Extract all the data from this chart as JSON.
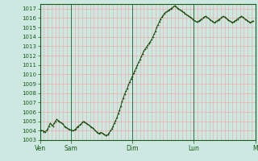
{
  "background_color": "#cce8e0",
  "plot_bg_color": "#cce8e0",
  "grid_color_v": "#f0a0a0",
  "grid_color_h": "#f0a0a0",
  "line_color": "#1a4a0a",
  "marker_color": "#1a4a0a",
  "axis_color": "#1a5a1a",
  "tick_label_color": "#1a5a1a",
  "ylim": [
    1003,
    1017.5
  ],
  "yticks": [
    1003,
    1004,
    1005,
    1006,
    1007,
    1008,
    1009,
    1010,
    1011,
    1012,
    1013,
    1014,
    1015,
    1016,
    1017
  ],
  "xtick_labels": [
    "Ven",
    "Sam",
    "Dim",
    "Lun",
    "M"
  ],
  "xtick_positions": [
    0,
    24,
    72,
    120,
    168
  ],
  "pressure_data": [
    1004.1,
    1004.0,
    1004.0,
    1003.9,
    1003.9,
    1004.0,
    1004.2,
    1004.5,
    1004.8,
    1004.6,
    1004.5,
    1004.8,
    1005.0,
    1005.2,
    1005.1,
    1005.0,
    1004.9,
    1004.8,
    1004.7,
    1004.5,
    1004.4,
    1004.3,
    1004.2,
    1004.1,
    1004.1,
    1004.0,
    1004.0,
    1004.1,
    1004.2,
    1004.4,
    1004.5,
    1004.6,
    1004.7,
    1004.9,
    1005.0,
    1004.9,
    1004.8,
    1004.7,
    1004.6,
    1004.5,
    1004.4,
    1004.3,
    1004.2,
    1004.0,
    1003.9,
    1003.8,
    1003.7,
    1003.8,
    1003.8,
    1003.7,
    1003.6,
    1003.5,
    1003.5,
    1003.6,
    1003.8,
    1004.0,
    1004.2,
    1004.5,
    1004.8,
    1005.1,
    1005.4,
    1005.8,
    1006.2,
    1006.6,
    1007.1,
    1007.5,
    1007.9,
    1008.2,
    1008.5,
    1008.9,
    1009.2,
    1009.5,
    1009.8,
    1010.1,
    1010.4,
    1010.7,
    1011.0,
    1011.3,
    1011.6,
    1011.9,
    1012.2,
    1012.5,
    1012.7,
    1012.9,
    1013.1,
    1013.3,
    1013.5,
    1013.7,
    1014.0,
    1014.3,
    1014.6,
    1015.0,
    1015.3,
    1015.6,
    1015.9,
    1016.1,
    1016.3,
    1016.5,
    1016.6,
    1016.7,
    1016.8,
    1016.9,
    1017.0,
    1017.1,
    1017.2,
    1017.3,
    1017.2,
    1017.1,
    1017.0,
    1016.9,
    1016.8,
    1016.7,
    1016.6,
    1016.5,
    1016.4,
    1016.3,
    1016.2,
    1016.1,
    1016.0,
    1015.9,
    1015.8,
    1015.7,
    1015.6,
    1015.6,
    1015.7,
    1015.8,
    1015.9,
    1016.0,
    1016.1,
    1016.2,
    1016.1,
    1016.0,
    1015.9,
    1015.8,
    1015.7,
    1015.6,
    1015.5,
    1015.6,
    1015.7,
    1015.8,
    1015.9,
    1016.0,
    1016.1,
    1016.2,
    1016.1,
    1016.0,
    1015.9,
    1015.8,
    1015.7,
    1015.6,
    1015.5,
    1015.6,
    1015.7,
    1015.8,
    1015.9,
    1016.0,
    1016.1,
    1016.2,
    1016.1,
    1016.0,
    1015.9,
    1015.8,
    1015.7,
    1015.6,
    1015.5,
    1015.6,
    1015.7
  ],
  "vline_color": "#3a6a3a"
}
